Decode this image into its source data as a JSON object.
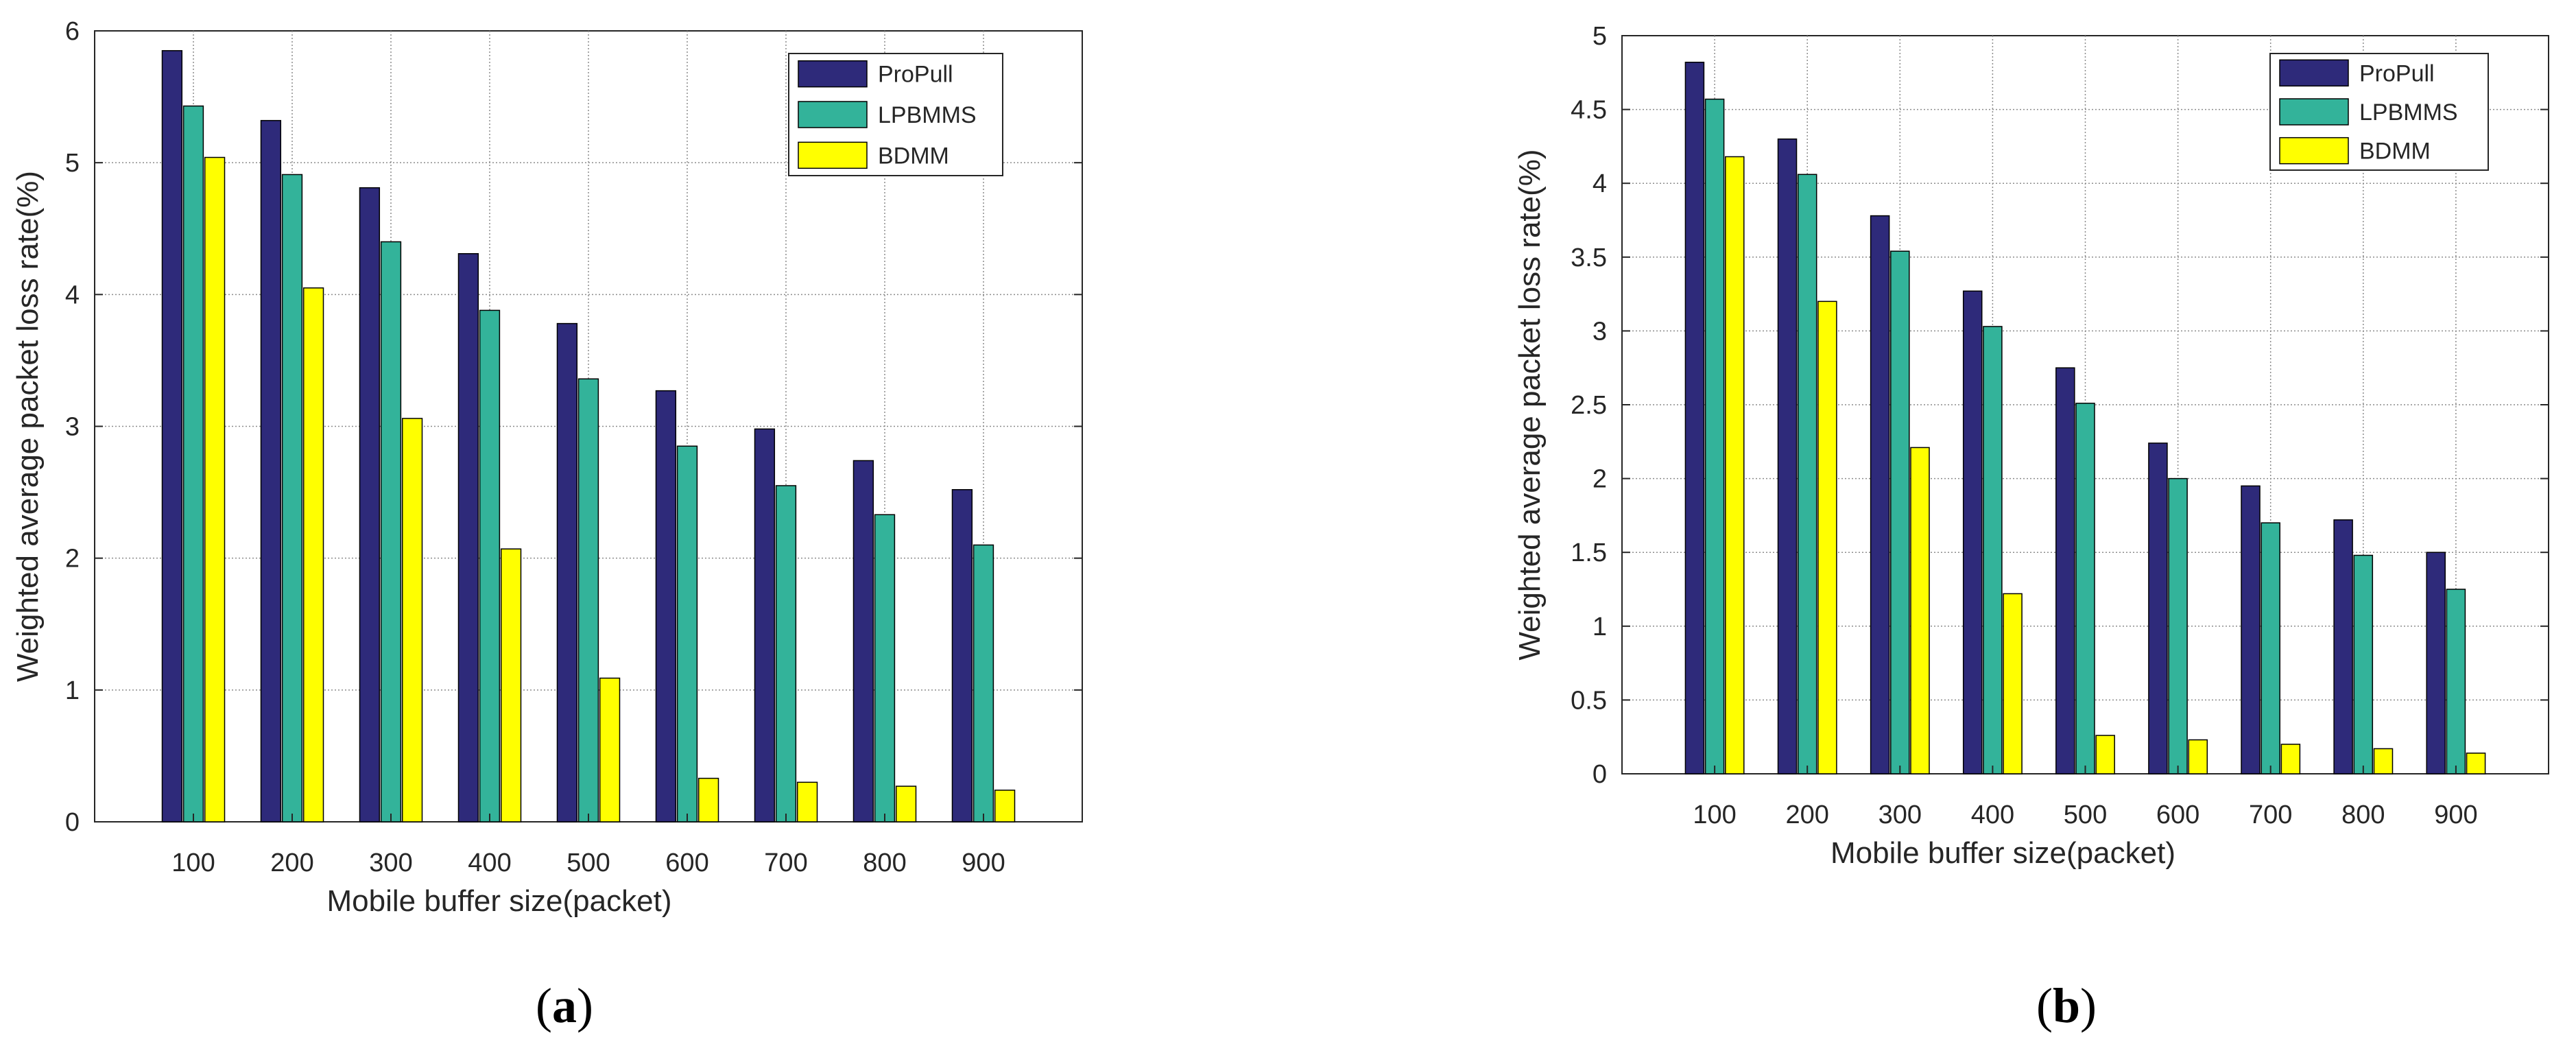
{
  "chart_data": [
    {
      "type": "bar",
      "caption": "a",
      "categories": [
        "100",
        "200",
        "300",
        "400",
        "500",
        "600",
        "700",
        "800",
        "900"
      ],
      "series": [
        {
          "name": "ProPull",
          "color": "#2e2a7a",
          "values": [
            5.85,
            5.32,
            4.81,
            4.31,
            3.78,
            3.27,
            2.98,
            2.74,
            2.52
          ]
        },
        {
          "name": "LPBMMS",
          "color": "#33b39a",
          "values": [
            5.43,
            4.91,
            4.4,
            3.88,
            3.36,
            2.85,
            2.55,
            2.33,
            2.1
          ]
        },
        {
          "name": "BDMM",
          "color": "#ffff00",
          "values": [
            5.04,
            4.05,
            3.06,
            2.07,
            1.09,
            0.33,
            0.3,
            0.27,
            0.24
          ]
        }
      ],
      "xlabel": "Mobile buffer size(packet)",
      "ylabel": "Weighted average packet loss rate(%)",
      "ylim": [
        0,
        6
      ],
      "yticks": [
        "0",
        "1",
        "2",
        "3",
        "4",
        "5",
        "6"
      ],
      "legend": "top-right",
      "grid": true
    },
    {
      "type": "bar",
      "caption": "b",
      "categories": [
        "100",
        "200",
        "300",
        "400",
        "500",
        "600",
        "700",
        "800",
        "900"
      ],
      "series": [
        {
          "name": "ProPull",
          "color": "#2e2a7a",
          "values": [
            4.82,
            4.3,
            3.78,
            3.27,
            2.75,
            2.24,
            1.95,
            1.72,
            1.5
          ]
        },
        {
          "name": "LPBMMS",
          "color": "#33b39a",
          "values": [
            4.57,
            4.06,
            3.54,
            3.03,
            2.51,
            2.0,
            1.7,
            1.48,
            1.25
          ]
        },
        {
          "name": "BDMM",
          "color": "#ffff00",
          "values": [
            4.18,
            3.2,
            2.21,
            1.22,
            0.26,
            0.23,
            0.2,
            0.17,
            0.14
          ]
        }
      ],
      "xlabel": "Mobile buffer size(packet)",
      "ylabel": "Weighted average packet loss rate(%)",
      "ylim": [
        0,
        5
      ],
      "yticks": [
        "0",
        "0.5",
        "1",
        "1.5",
        "2",
        "2.5",
        "3",
        "3.5",
        "4",
        "4.5",
        "5"
      ],
      "legend": "top-right",
      "grid": true
    }
  ]
}
